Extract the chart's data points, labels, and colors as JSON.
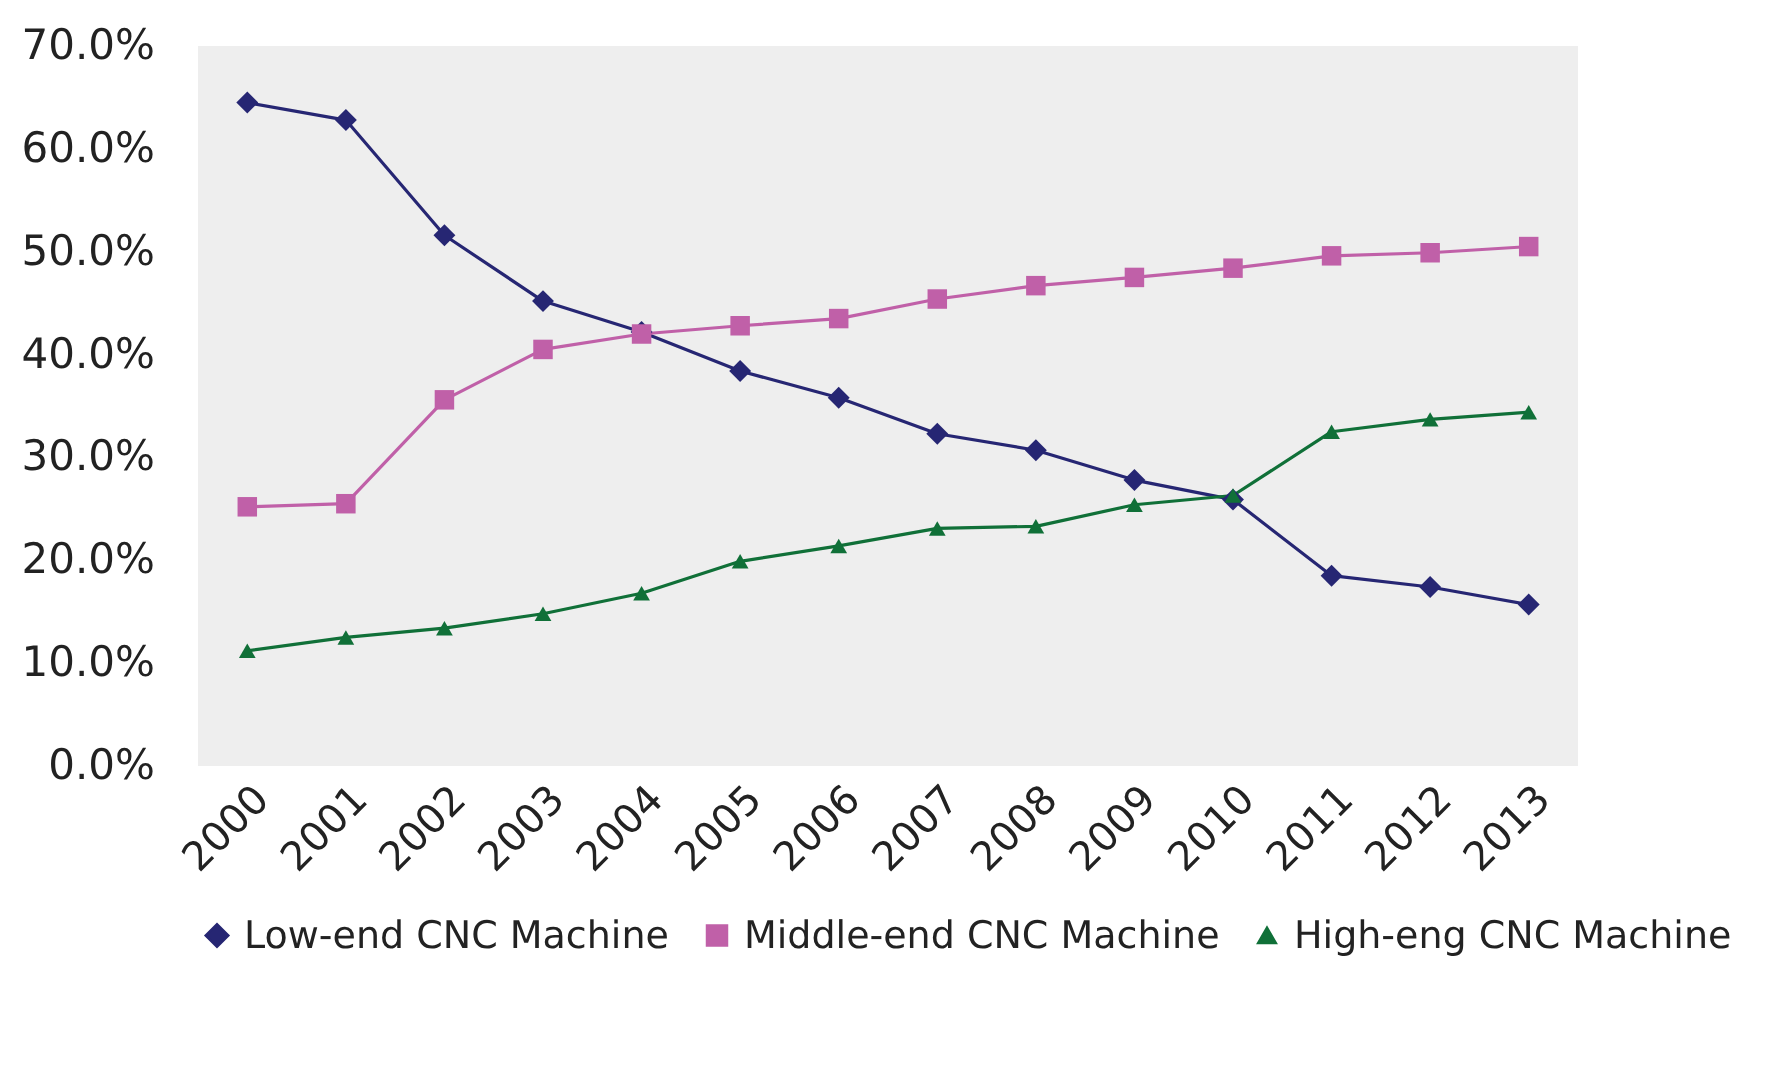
{
  "chart_data": {
    "type": "line",
    "categories": [
      "2000",
      "2001",
      "2002",
      "2003",
      "2004",
      "2005",
      "2006",
      "2007",
      "2008",
      "2009",
      "2010",
      "2011",
      "2012",
      "2013"
    ],
    "series": [
      {
        "name": "Low-end CNC Machine",
        "color": "#262673",
        "marker": "diamond",
        "values": [
          64.5,
          62.8,
          51.6,
          45.2,
          42.2,
          38.4,
          35.8,
          32.3,
          30.7,
          27.8,
          25.9,
          18.5,
          17.4,
          15.7
        ]
      },
      {
        "name": "Middle-end CNC Machine",
        "color": "#c060a8",
        "marker": "square",
        "values": [
          25.2,
          25.5,
          35.6,
          40.5,
          42.0,
          42.8,
          43.5,
          45.4,
          46.7,
          47.5,
          48.4,
          49.6,
          49.9,
          50.5
        ]
      },
      {
        "name": "High-eng CNC Machine",
        "color": "#107038",
        "marker": "triangle",
        "values": [
          11.2,
          12.5,
          13.4,
          14.8,
          16.8,
          19.9,
          21.4,
          23.1,
          23.3,
          25.4,
          26.3,
          32.5,
          33.7,
          34.4
        ]
      }
    ],
    "ylim": [
      0,
      70
    ],
    "yticks": [
      {
        "value": 0,
        "label": "0.0%"
      },
      {
        "value": 10,
        "label": "10.0%"
      },
      {
        "value": 20,
        "label": "20.0%"
      },
      {
        "value": 30,
        "label": "30.0%"
      },
      {
        "value": 40,
        "label": "40.0%"
      },
      {
        "value": 50,
        "label": "50.0%"
      },
      {
        "value": 60,
        "label": "60.0%"
      },
      {
        "value": 70,
        "label": "70.0%"
      }
    ],
    "grid": false,
    "legend": "bottom",
    "line_style": "solid"
  }
}
